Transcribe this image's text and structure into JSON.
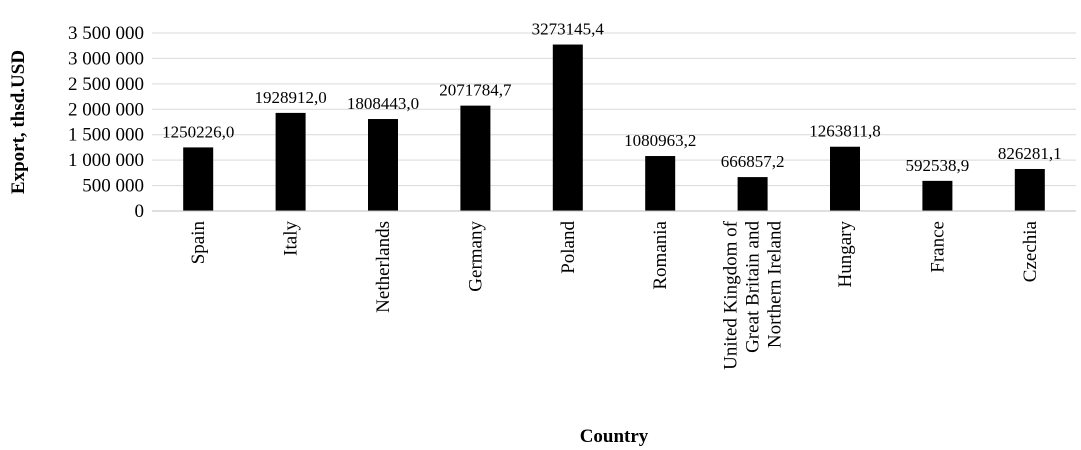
{
  "chart_data": {
    "type": "bar",
    "categories": [
      "Spain",
      "Italy",
      "Netherlands",
      "Germany",
      "Poland",
      "Romania",
      "United Kingdom of Great Britain and Northern Ireland",
      "Hungary",
      "France",
      "Czechia"
    ],
    "category_label_lines": [
      [
        "Spain"
      ],
      [
        "Italy"
      ],
      [
        "Netherlands"
      ],
      [
        "Germany"
      ],
      [
        "Poland"
      ],
      [
        "Romania"
      ],
      [
        "United Kingdom of",
        "Great Britain and",
        "Northern Ireland"
      ],
      [
        "Hungary"
      ],
      [
        "France"
      ],
      [
        "Czechia"
      ]
    ],
    "values": [
      1250226.0,
      1928912.0,
      1808443.0,
      2071784.7,
      3273145.4,
      1080963.2,
      666857.2,
      1263811.8,
      592538.9,
      826281.1
    ],
    "data_labels": [
      "1250226,0",
      "1928912,0",
      "1808443,0",
      "2071784,7",
      "3273145,4",
      "1080963,2",
      "666857,2",
      "1263811,8",
      "592538,9",
      "826281,1"
    ],
    "xlabel": "Country",
    "ylabel": "Export, thsd.USD",
    "ylim": [
      0,
      3500000
    ],
    "yticks": [
      0,
      500000,
      1000000,
      1500000,
      2000000,
      2500000,
      3000000,
      3500000
    ],
    "ytick_labels": [
      "0",
      "500 000",
      "1 000 000",
      "1 500 000",
      "2 000 000",
      "2 500 000",
      "3 000 000",
      "3 500 000"
    ],
    "grid": true,
    "legend": false,
    "bar_color": "#000000"
  }
}
